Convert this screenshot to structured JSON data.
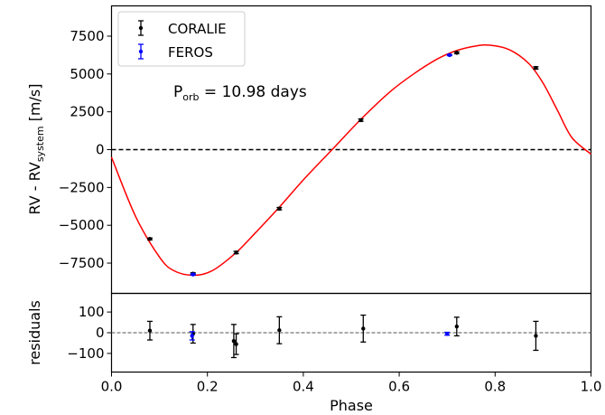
{
  "chart_data": [
    {
      "type": "scatter",
      "panel": "main",
      "ylabel": {
        "main": "RV - RV",
        "subscript": "system",
        "unit": " [m/s]"
      },
      "xlim": [
        0.0,
        1.0
      ],
      "ylim": [
        -9500,
        9500
      ],
      "yticks": [
        -7500,
        -5000,
        -2500,
        0,
        2500,
        5000,
        7500
      ],
      "ytick_labels": [
        "−7500",
        "−5000",
        "−2500",
        "0",
        "2500",
        "5000",
        "7500"
      ],
      "annotation": {
        "main": "P",
        "subscript": "orb",
        "rest": " = 10.98 days"
      },
      "legend": {
        "position": "top-left",
        "entries": [
          "CORALIE",
          "FEROS"
        ]
      },
      "zero_line": 0,
      "model": {
        "color": "#ff0000",
        "phase": [
          0.0,
          0.05,
          0.1,
          0.13,
          0.17,
          0.21,
          0.26,
          0.3,
          0.35,
          0.4,
          0.46,
          0.52,
          0.58,
          0.63,
          0.68,
          0.72,
          0.76,
          0.79,
          0.83,
          0.87,
          0.9,
          0.93,
          0.96,
          1.0
        ],
        "rv": [
          -500,
          -4400,
          -7100,
          -8000,
          -8300,
          -8000,
          -6800,
          -5500,
          -3800,
          -2000,
          0,
          2000,
          3800,
          5000,
          6000,
          6550,
          6850,
          6900,
          6600,
          5700,
          4400,
          2600,
          800,
          -300
        ]
      },
      "series": [
        {
          "name": "CORALIE",
          "color": "#000000",
          "x": [
            0.08,
            0.17,
            0.26,
            0.35,
            0.52,
            0.72,
            0.885
          ],
          "y": [
            -5900,
            -8200,
            -6800,
            -3900,
            1950,
            6400,
            5400
          ],
          "err": [
            60,
            60,
            80,
            80,
            80,
            60,
            80
          ]
        },
        {
          "name": "FEROS",
          "color": "#0000ff",
          "x": [
            0.17,
            0.705
          ],
          "y": [
            -8250,
            6250
          ],
          "err": [
            40,
            40
          ]
        }
      ]
    },
    {
      "type": "scatter",
      "panel": "residuals",
      "xlabel": "Phase",
      "ylabel": "residuals",
      "xlim": [
        0.0,
        1.0
      ],
      "ylim": [
        -190,
        190
      ],
      "xticks": [
        0.0,
        0.2,
        0.4,
        0.6,
        0.8,
        1.0
      ],
      "xtick_labels": [
        "0.0",
        "0.2",
        "0.4",
        "0.6",
        "0.8",
        "1.0"
      ],
      "yticks": [
        -100,
        0,
        100
      ],
      "ytick_labels": [
        "−100",
        "0",
        "100"
      ],
      "zero_line": 0,
      "series": [
        {
          "name": "CORALIE",
          "color": "#000000",
          "x": [
            0.08,
            0.17,
            0.255,
            0.26,
            0.35,
            0.525,
            0.72,
            0.885
          ],
          "y": [
            10,
            -5,
            -40,
            -55,
            12,
            20,
            30,
            -15
          ],
          "err": [
            45,
            45,
            80,
            50,
            65,
            65,
            45,
            70
          ]
        },
        {
          "name": "FEROS",
          "color": "#0000ff",
          "x": [
            0.168,
            0.7
          ],
          "y": [
            -15,
            -5
          ],
          "err": [
            20,
            7
          ]
        }
      ]
    }
  ]
}
